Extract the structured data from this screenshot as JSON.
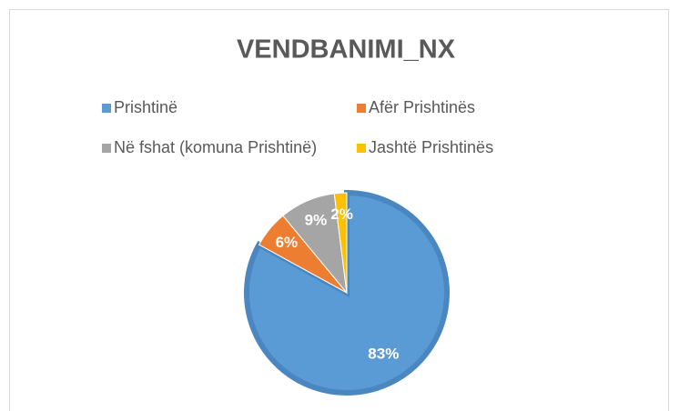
{
  "chart_data": {
    "type": "pie",
    "title": "VENDBANIMI_NX",
    "categories": [
      "Prishtinë",
      "Afër Prishtinës",
      "Në fshat (komuna Prishtinë)",
      "Jashtë Prishtinës"
    ],
    "values": [
      83,
      6,
      9,
      2
    ],
    "value_labels": [
      "83%",
      "6%",
      "9%",
      "2%"
    ],
    "colors": [
      "#5b9bd5",
      "#ed7d31",
      "#a5a5a5",
      "#ffc000"
    ],
    "legend": "top"
  }
}
